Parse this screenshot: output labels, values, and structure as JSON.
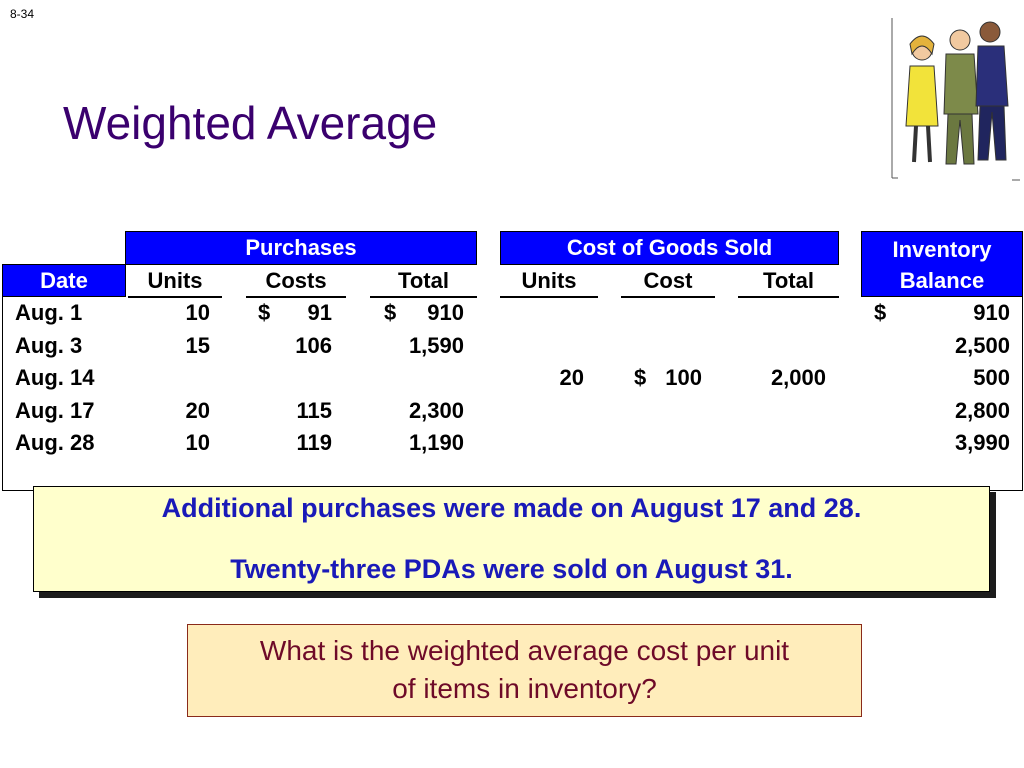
{
  "slide_number": "8-34",
  "title": "Weighted Average",
  "table": {
    "group_headers": {
      "purchases": "Purchases",
      "cogs": "Cost of Goods Sold",
      "inventory_line1": "Inventory",
      "inventory_line2": "Balance"
    },
    "column_headers": {
      "date": "Date",
      "p_units": "Units",
      "p_costs": "Costs",
      "p_total": "Total",
      "c_units": "Units",
      "c_cost": "Cost",
      "c_total": "Total"
    },
    "rows": [
      {
        "date": "Aug. 1",
        "p_units": "10",
        "p_cost_sign": "$",
        "p_cost": "91",
        "p_total_sign": "$",
        "p_total": "910",
        "c_units": "",
        "c_cost_sign": "",
        "c_cost": "",
        "c_total": "",
        "inv_sign": "$",
        "inv": "910"
      },
      {
        "date": "Aug. 3",
        "p_units": "15",
        "p_cost_sign": "",
        "p_cost": "106",
        "p_total_sign": "",
        "p_total": "1,590",
        "c_units": "",
        "c_cost_sign": "",
        "c_cost": "",
        "c_total": "",
        "inv_sign": "",
        "inv": "2,500"
      },
      {
        "date": "Aug. 14",
        "p_units": "",
        "p_cost_sign": "",
        "p_cost": "",
        "p_total_sign": "",
        "p_total": "",
        "c_units": "20",
        "c_cost_sign": "$",
        "c_cost": "100",
        "c_total": "2,000",
        "inv_sign": "",
        "inv": "500"
      },
      {
        "date": "Aug. 17",
        "p_units": "20",
        "p_cost_sign": "",
        "p_cost": "115",
        "p_total_sign": "",
        "p_total": "2,300",
        "c_units": "",
        "c_cost_sign": "",
        "c_cost": "",
        "c_total": "",
        "inv_sign": "",
        "inv": "2,800"
      },
      {
        "date": "Aug. 28",
        "p_units": "10",
        "p_cost_sign": "",
        "p_cost": "119",
        "p_total_sign": "",
        "p_total": "1,190",
        "c_units": "",
        "c_cost_sign": "",
        "c_cost": "",
        "c_total": "",
        "inv_sign": "",
        "inv": "3,990"
      }
    ]
  },
  "note": {
    "line1": "Additional purchases were made on August 17 and 28.",
    "line2": "Twenty-three PDAs were sold on August 31."
  },
  "question": {
    "line1": "What is the weighted average cost per unit",
    "line2": "of items in inventory?"
  },
  "icons": {
    "clipart": "business-people-clipart-icon"
  },
  "colors": {
    "title": "#3a006e",
    "header_bg": "#0000ff",
    "note_bg": "#ffffcc",
    "note_text": "#1a1ab8",
    "question_bg": "#ffedbb",
    "question_text": "#6e0a28"
  }
}
